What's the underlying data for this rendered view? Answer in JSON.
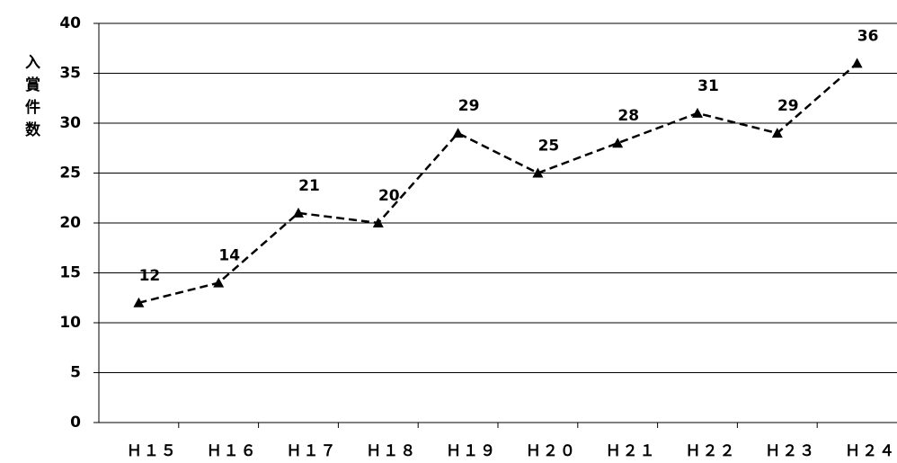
{
  "chart_data": {
    "type": "line",
    "y_label": "入賞件数",
    "categories": [
      "Ｈ１５",
      "Ｈ１６",
      "Ｈ１７",
      "Ｈ１８",
      "Ｈ１９",
      "Ｈ２０",
      "Ｈ２１",
      "Ｈ２２",
      "Ｈ２３",
      "Ｈ２４"
    ],
    "series": [
      {
        "color": "#000000",
        "values": [
          12,
          14,
          21,
          20,
          29,
          25,
          28,
          31,
          29,
          36
        ]
      }
    ],
    "ylim": [
      0,
      40
    ],
    "yticks": [
      0,
      5,
      10,
      15,
      20,
      25,
      30,
      35,
      40
    ],
    "grid": true
  }
}
